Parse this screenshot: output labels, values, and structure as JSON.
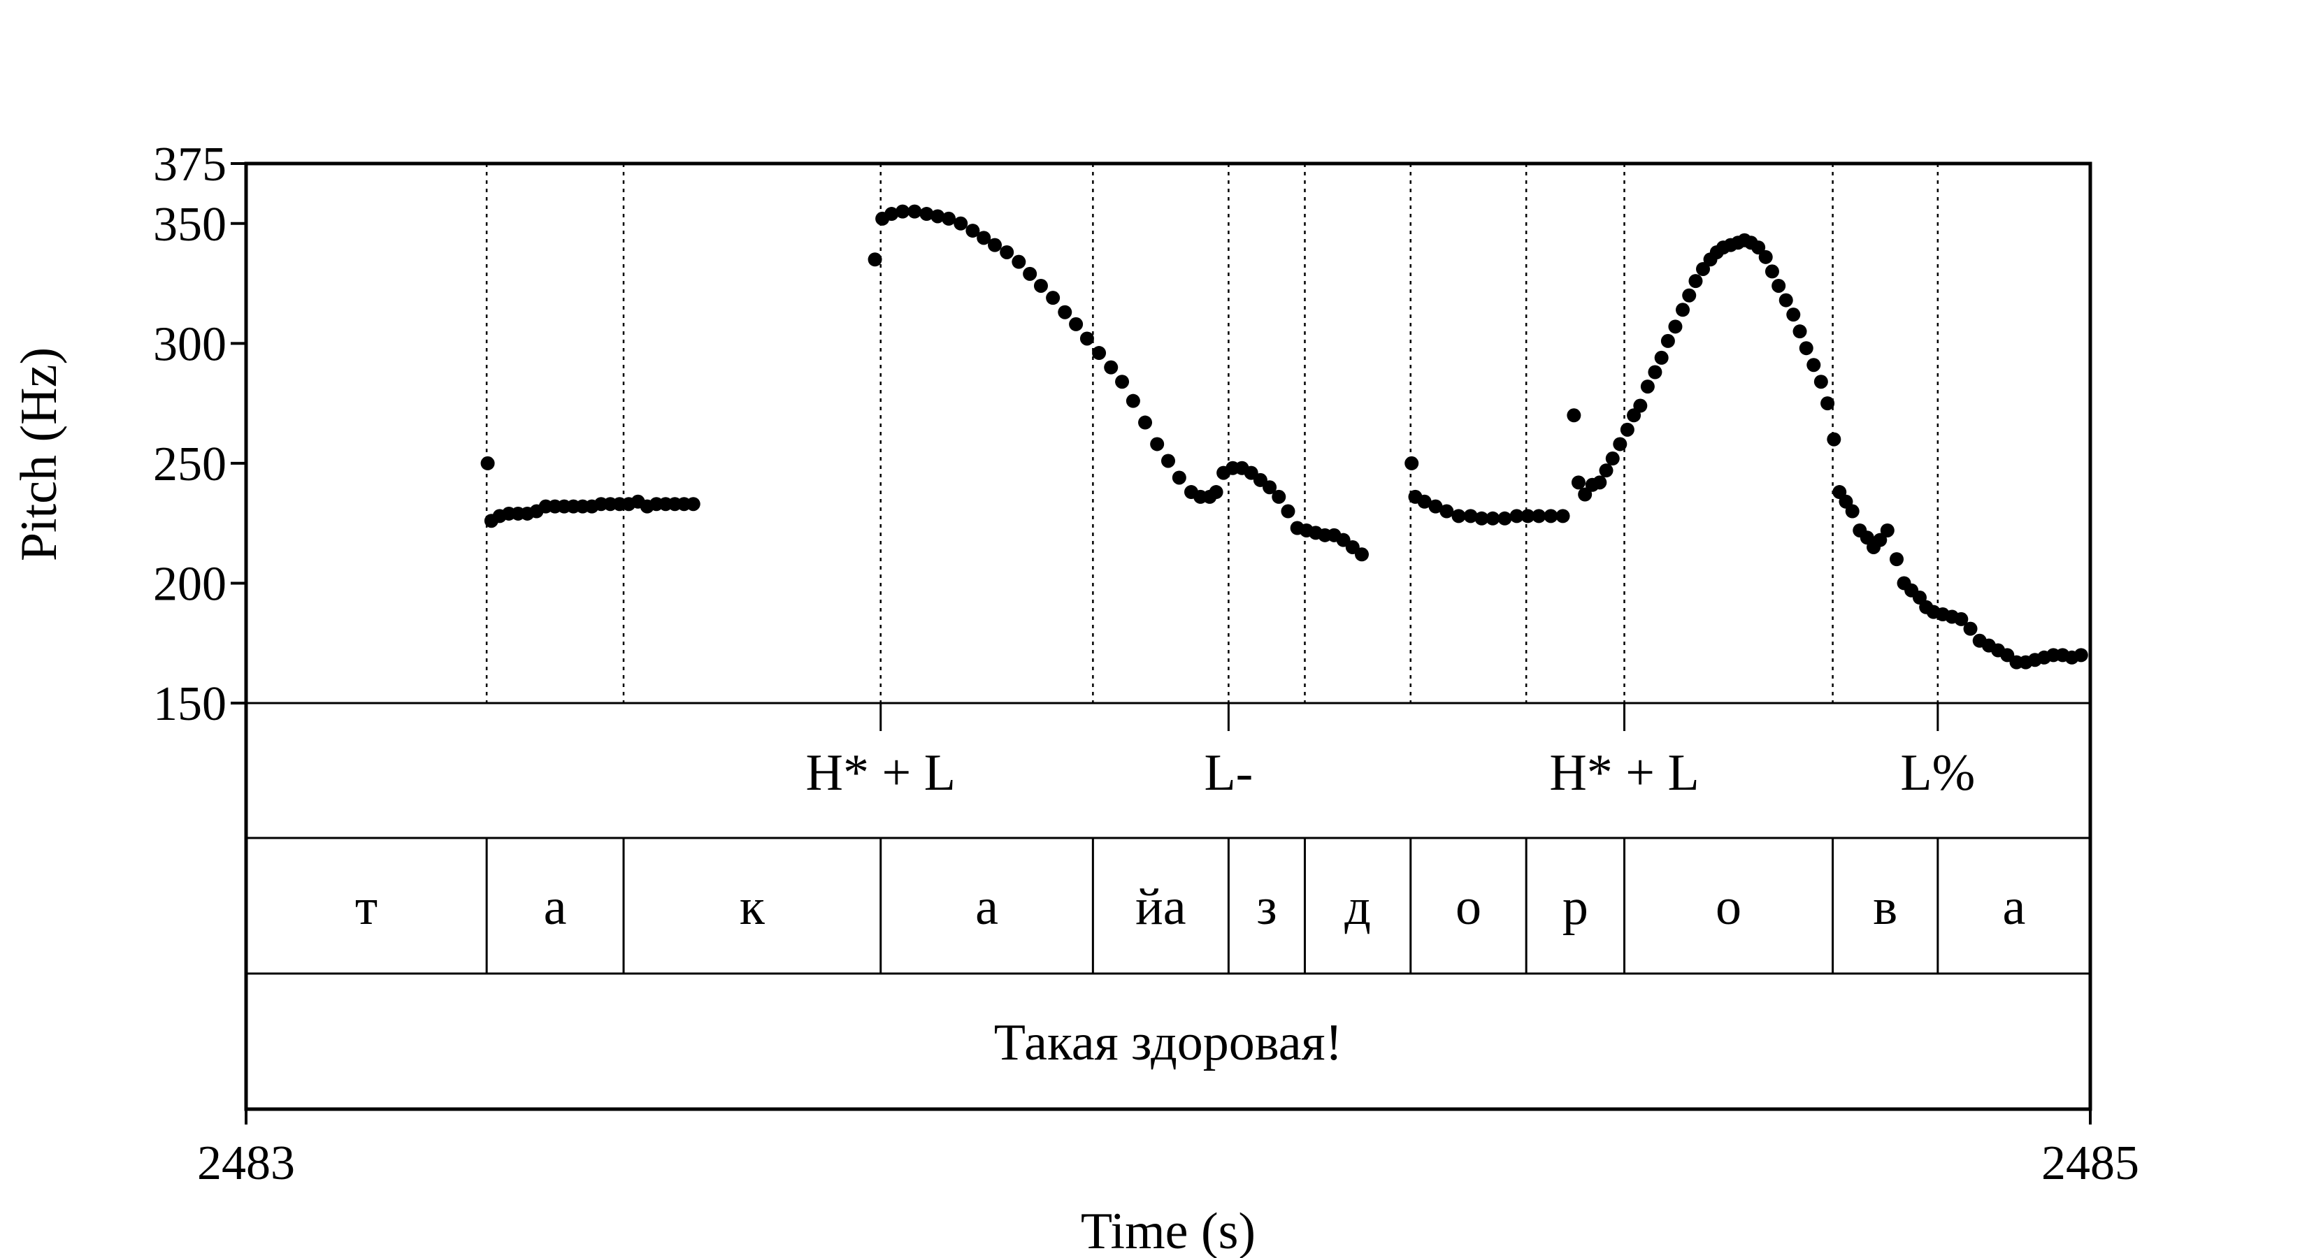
{
  "chart_data": {
    "type": "scatter",
    "title": "",
    "xlabel": "Time (s)",
    "ylabel": "Pitch (Hz)",
    "xlim": [
      2483,
      2485
    ],
    "ylim": [
      150,
      375
    ],
    "x_ticks": [
      "2483",
      "2485"
    ],
    "y_ticks": [
      {
        "value": 150,
        "label": "150"
      },
      {
        "value": 200,
        "label": "200"
      },
      {
        "value": 250,
        "label": "250"
      },
      {
        "value": 300,
        "label": "300"
      },
      {
        "value": 350,
        "label": "350"
      },
      {
        "value": 375,
        "label": "375"
      }
    ],
    "grid": false,
    "boundaries": [
      2483.2609,
      2483.4094,
      2483.6882,
      2483.9184,
      2484.0655,
      2484.1482,
      2484.2629,
      2484.3883,
      2484.4947,
      2484.7207,
      2484.8346
    ],
    "tones": [
      {
        "label": "H* + L",
        "time": 2483.6882
      },
      {
        "label": "L-",
        "time": 2484.0655
      },
      {
        "label": "H* + L",
        "time": 2484.4947
      },
      {
        "label": "L%",
        "time": 2484.8346
      }
    ],
    "segments": [
      {
        "label": "т",
        "start": 2483.0,
        "end": 2483.2609
      },
      {
        "label": "а",
        "start": 2483.2609,
        "end": 2483.4094
      },
      {
        "label": "к",
        "start": 2483.4094,
        "end": 2483.6882
      },
      {
        "label": "а",
        "start": 2483.6882,
        "end": 2483.9184
      },
      {
        "label": "йа",
        "start": 2483.9184,
        "end": 2484.0655
      },
      {
        "label": "з",
        "start": 2484.0655,
        "end": 2484.1482
      },
      {
        "label": "д",
        "start": 2484.1482,
        "end": 2484.2629
      },
      {
        "label": "о",
        "start": 2484.2629,
        "end": 2484.3883
      },
      {
        "label": "р",
        "start": 2484.3883,
        "end": 2484.4947
      },
      {
        "label": "о",
        "start": 2484.4947,
        "end": 2484.7207
      },
      {
        "label": "в",
        "start": 2484.7207,
        "end": 2484.8346
      },
      {
        "label": "а",
        "start": 2484.8346,
        "end": 2485.0
      }
    ],
    "utterance": "Такая здоровая!",
    "pitch_segments": [
      [
        [
          2483.262,
          250
        ],
        [
          2483.266,
          226
        ],
        [
          2483.275,
          228
        ],
        [
          2483.285,
          229
        ],
        [
          2483.295,
          229
        ],
        [
          2483.305,
          229
        ],
        [
          2483.315,
          230
        ],
        [
          2483.325,
          232
        ],
        [
          2483.335,
          232
        ],
        [
          2483.345,
          232
        ],
        [
          2483.355,
          232
        ],
        [
          2483.365,
          232
        ],
        [
          2483.375,
          232
        ],
        [
          2483.385,
          233
        ],
        [
          2483.395,
          233
        ],
        [
          2483.405,
          233
        ],
        [
          2483.415,
          233
        ],
        [
          2483.425,
          234
        ],
        [
          2483.435,
          232
        ],
        [
          2483.445,
          233
        ],
        [
          2483.455,
          233
        ],
        [
          2483.465,
          233
        ],
        [
          2483.475,
          233
        ],
        [
          2483.485,
          233
        ]
      ],
      [
        [
          2483.682,
          335
        ],
        [
          2483.69,
          352
        ],
        [
          2483.7,
          354
        ],
        [
          2483.712,
          355
        ],
        [
          2483.725,
          355
        ],
        [
          2483.738,
          354
        ],
        [
          2483.75,
          353
        ],
        [
          2483.762,
          352
        ],
        [
          2483.775,
          350
        ],
        [
          2483.788,
          347
        ],
        [
          2483.8,
          344
        ],
        [
          2483.812,
          341
        ],
        [
          2483.825,
          338
        ],
        [
          2483.838,
          334
        ],
        [
          2483.85,
          329
        ],
        [
          2483.862,
          324
        ],
        [
          2483.875,
          319
        ],
        [
          2483.888,
          313
        ],
        [
          2483.9,
          308
        ],
        [
          2483.912,
          302
        ],
        [
          2483.925,
          296
        ],
        [
          2483.938,
          290
        ],
        [
          2483.95,
          284
        ],
        [
          2483.962,
          276
        ],
        [
          2483.975,
          267
        ],
        [
          2483.988,
          258
        ],
        [
          2484.0,
          251
        ],
        [
          2484.012,
          244
        ],
        [
          2484.025,
          238
        ],
        [
          2484.035,
          236
        ],
        [
          2484.045,
          236
        ],
        [
          2484.052,
          238
        ],
        [
          2484.06,
          246
        ],
        [
          2484.07,
          248
        ],
        [
          2484.08,
          248
        ],
        [
          2484.09,
          246
        ],
        [
          2484.1,
          243
        ],
        [
          2484.11,
          240
        ],
        [
          2484.12,
          236
        ],
        [
          2484.13,
          230
        ],
        [
          2484.14,
          223
        ],
        [
          2484.15,
          222
        ],
        [
          2484.16,
          221
        ],
        [
          2484.17,
          220
        ],
        [
          2484.18,
          220
        ],
        [
          2484.19,
          218
        ],
        [
          2484.2,
          215
        ],
        [
          2484.21,
          212
        ]
      ],
      [
        [
          2484.264,
          250
        ],
        [
          2484.268,
          236
        ],
        [
          2484.278,
          234
        ],
        [
          2484.29,
          232
        ],
        [
          2484.302,
          230
        ],
        [
          2484.315,
          228
        ],
        [
          2484.328,
          228
        ],
        [
          2484.34,
          227
        ],
        [
          2484.352,
          227
        ],
        [
          2484.365,
          227
        ],
        [
          2484.378,
          228
        ],
        [
          2484.39,
          228
        ],
        [
          2484.402,
          228
        ],
        [
          2484.415,
          228
        ],
        [
          2484.428,
          228
        ],
        [
          2484.44,
          270
        ],
        [
          2484.445,
          242
        ],
        [
          2484.452,
          237
        ],
        [
          2484.46,
          241
        ],
        [
          2484.468,
          242
        ],
        [
          2484.475,
          247
        ],
        [
          2484.482,
          252
        ],
        [
          2484.49,
          258
        ],
        [
          2484.498,
          264
        ],
        [
          2484.505,
          270
        ],
        [
          2484.512,
          274
        ],
        [
          2484.52,
          282
        ],
        [
          2484.528,
          288
        ],
        [
          2484.535,
          294
        ],
        [
          2484.542,
          301
        ],
        [
          2484.55,
          307
        ],
        [
          2484.558,
          314
        ],
        [
          2484.565,
          320
        ],
        [
          2484.572,
          326
        ],
        [
          2484.58,
          331
        ],
        [
          2484.588,
          335
        ],
        [
          2484.595,
          338
        ],
        [
          2484.602,
          340
        ],
        [
          2484.61,
          341
        ],
        [
          2484.618,
          342
        ],
        [
          2484.625,
          343
        ],
        [
          2484.632,
          342
        ],
        [
          2484.64,
          340
        ],
        [
          2484.648,
          336
        ],
        [
          2484.655,
          330
        ],
        [
          2484.662,
          324
        ],
        [
          2484.67,
          318
        ],
        [
          2484.678,
          312
        ],
        [
          2484.685,
          305
        ],
        [
          2484.692,
          298
        ],
        [
          2484.7,
          291
        ],
        [
          2484.708,
          284
        ],
        [
          2484.715,
          275
        ],
        [
          2484.722,
          260
        ],
        [
          2484.728,
          238
        ],
        [
          2484.735,
          234
        ],
        [
          2484.742,
          230
        ],
        [
          2484.75,
          222
        ],
        [
          2484.758,
          219
        ],
        [
          2484.765,
          215
        ],
        [
          2484.772,
          218
        ],
        [
          2484.78,
          222
        ],
        [
          2484.79,
          210
        ],
        [
          2484.798,
          200
        ],
        [
          2484.806,
          197
        ],
        [
          2484.815,
          194
        ],
        [
          2484.822,
          190
        ],
        [
          2484.83,
          188
        ],
        [
          2484.84,
          187
        ],
        [
          2484.85,
          186
        ],
        [
          2484.86,
          185
        ],
        [
          2484.87,
          181
        ],
        [
          2484.88,
          176
        ],
        [
          2484.89,
          174
        ],
        [
          2484.9,
          172
        ],
        [
          2484.91,
          170
        ],
        [
          2484.92,
          167
        ],
        [
          2484.93,
          167
        ],
        [
          2484.94,
          168
        ],
        [
          2484.95,
          169
        ],
        [
          2484.96,
          170
        ],
        [
          2484.97,
          170
        ],
        [
          2484.98,
          169
        ],
        [
          2484.99,
          170
        ]
      ]
    ]
  }
}
